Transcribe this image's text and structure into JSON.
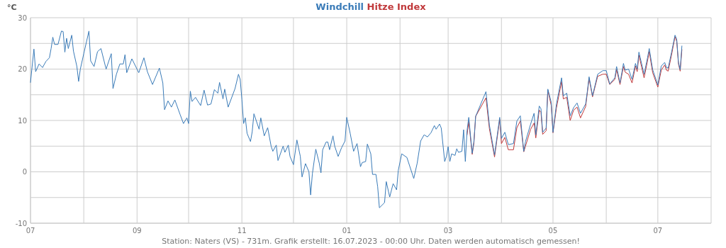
{
  "chart_data": {
    "type": "line",
    "ylabel": "°C",
    "legend": "top",
    "grid": true,
    "line_style": "solid",
    "marker": "none",
    "xlim": [
      "2022-07-01",
      "2023-08-01"
    ],
    "xticks": [
      {
        "value": "2022-07-01",
        "label": "07"
      },
      {
        "value": "2022-08-01",
        "label": null
      },
      {
        "value": "2022-09-01",
        "label": "09"
      },
      {
        "value": "2022-10-01",
        "label": null
      },
      {
        "value": "2022-11-01",
        "label": "11"
      },
      {
        "value": "2022-12-01",
        "label": null
      },
      {
        "value": "2023-01-01",
        "label": "01"
      },
      {
        "value": "2023-02-01",
        "label": null
      },
      {
        "value": "2023-03-01",
        "label": "03"
      },
      {
        "value": "2023-04-01",
        "label": null
      },
      {
        "value": "2023-05-01",
        "label": "05"
      },
      {
        "value": "2023-06-01",
        "label": null
      },
      {
        "value": "2023-07-01",
        "label": "07"
      },
      {
        "value": "2023-08-01",
        "label": null
      }
    ],
    "ylim": [
      -10,
      30
    ],
    "yticks": [
      -10,
      {
        "value": -5,
        "label": null
      },
      0,
      {
        "value": 5,
        "label": null
      },
      10,
      {
        "value": 15,
        "label": null
      },
      20,
      {
        "value": 25,
        "label": null
      },
      30
    ],
    "annotations": [
      "Station: Naters (VS) - 731m. Grafik erstellt: 16.07.2023 - 00:00 Uhr. Daten werden automatisch gemessen!"
    ],
    "series": [
      {
        "name": "Windchill",
        "color": "#3a7bb8",
        "x": [
          "2022-07-01",
          "2022-07-03",
          "2022-07-04",
          "2022-07-06",
          "2022-07-08",
          "2022-07-10",
          "2022-07-12",
          "2022-07-13",
          "2022-07-14",
          "2022-07-15",
          "2022-07-17",
          "2022-07-19",
          "2022-07-20",
          "2022-07-21",
          "2022-07-22",
          "2022-07-23",
          "2022-07-25",
          "2022-07-26",
          "2022-07-28",
          "2022-07-29",
          "2022-07-30",
          "2022-08-01",
          "2022-08-04",
          "2022-08-05",
          "2022-08-07",
          "2022-08-09",
          "2022-08-11",
          "2022-08-14",
          "2022-08-17",
          "2022-08-18",
          "2022-08-20",
          "2022-08-22",
          "2022-08-24",
          "2022-08-25",
          "2022-08-26",
          "2022-08-29",
          "2022-09-02",
          "2022-09-05",
          "2022-09-07",
          "2022-09-10",
          "2022-09-14",
          "2022-09-16",
          "2022-09-17",
          "2022-09-19",
          "2022-09-21",
          "2022-09-23",
          "2022-09-26",
          "2022-09-28",
          "2022-09-30",
          "2022-10-01",
          "2022-10-02",
          "2022-10-03",
          "2022-10-05",
          "2022-10-08",
          "2022-10-10",
          "2022-10-12",
          "2022-10-14",
          "2022-10-16",
          "2022-10-18",
          "2022-10-19",
          "2022-10-21",
          "2022-10-22",
          "2022-10-24",
          "2022-10-28",
          "2022-10-30",
          "2022-10-31",
          "2022-11-01",
          "2022-11-02",
          "2022-11-03",
          "2022-11-04",
          "2022-11-06",
          "2022-11-07",
          "2022-11-08",
          "2022-11-11",
          "2022-11-12",
          "2022-11-14",
          "2022-11-16",
          "2022-11-18",
          "2022-11-19",
          "2022-11-21",
          "2022-11-22",
          "2022-11-25",
          "2022-11-26",
          "2022-11-28",
          "2022-11-29",
          "2022-12-01",
          "2022-12-03",
          "2022-12-05",
          "2022-12-06",
          "2022-12-08",
          "2022-12-10",
          "2022-12-11",
          "2022-12-12",
          "2022-12-14",
          "2022-12-16",
          "2022-12-17",
          "2022-12-18",
          "2022-12-20",
          "2022-12-21",
          "2022-12-22",
          "2022-12-24",
          "2022-12-25",
          "2022-12-27",
          "2022-12-29",
          "2022-12-31",
          "2023-01-01",
          "2023-01-03",
          "2023-01-05",
          "2023-01-07",
          "2023-01-09",
          "2023-01-10",
          "2023-01-12",
          "2023-01-13",
          "2023-01-15",
          "2023-01-16",
          "2023-01-18",
          "2023-01-19",
          "2023-01-20",
          "2023-01-23",
          "2023-01-24",
          "2023-01-26",
          "2023-01-28",
          "2023-01-30",
          "2023-01-31",
          "2023-02-02",
          "2023-02-05",
          "2023-02-09",
          "2023-02-11",
          "2023-02-13",
          "2023-02-15",
          "2023-02-17",
          "2023-02-19",
          "2023-02-21",
          "2023-02-22",
          "2023-02-24",
          "2023-02-25",
          "2023-02-27",
          "2023-02-28",
          "2023-03-01",
          "2023-03-02",
          "2023-03-03",
          "2023-03-05",
          "2023-03-06",
          "2023-03-07",
          "2023-03-09",
          "2023-03-10",
          "2023-03-11",
          "2023-03-12",
          "2023-03-13",
          "2023-03-15",
          "2023-03-16",
          "2023-03-17",
          "2023-03-23",
          "2023-03-25",
          "2023-03-28",
          "2023-03-31",
          "2023-04-01",
          "2023-04-03",
          "2023-04-05",
          "2023-04-08",
          "2023-04-10",
          "2023-04-12",
          "2023-04-14",
          "2023-04-15",
          "2023-04-18",
          "2023-04-20",
          "2023-04-21",
          "2023-04-23",
          "2023-04-24",
          "2023-04-25",
          "2023-04-27",
          "2023-04-28",
          "2023-04-30",
          "2023-05-01",
          "2023-05-03",
          "2023-05-06",
          "2023-05-07",
          "2023-05-09",
          "2023-05-11",
          "2023-05-13",
          "2023-05-15",
          "2023-05-17",
          "2023-05-20",
          "2023-05-21",
          "2023-05-22",
          "2023-05-24",
          "2023-05-27",
          "2023-05-30",
          "2023-06-01",
          "2023-06-03",
          "2023-06-06",
          "2023-06-07",
          "2023-06-09",
          "2023-06-11",
          "2023-06-12",
          "2023-06-14",
          "2023-06-16",
          "2023-06-18",
          "2023-06-19",
          "2023-06-20",
          "2023-06-23",
          "2023-06-25",
          "2023-06-26",
          "2023-06-28",
          "2023-07-01",
          "2023-07-03",
          "2023-07-05",
          "2023-07-06",
          "2023-07-07",
          "2023-07-09",
          "2023-07-11",
          "2023-07-12",
          "2023-07-13",
          "2023-07-14",
          "2023-07-15"
        ],
        "values": [
          17.4,
          23.9,
          19.5,
          21,
          20.3,
          21.5,
          22.2,
          24,
          26.2,
          24.8,
          24.8,
          27.4,
          27.3,
          23.3,
          26,
          24,
          26.6,
          23.5,
          20.5,
          17.6,
          20,
          23,
          27.4,
          21.6,
          20.5,
          23.4,
          24,
          20,
          23,
          16.2,
          19,
          21,
          21,
          22.8,
          19.3,
          22,
          19.3,
          22.2,
          19.5,
          17,
          20.2,
          17.3,
          12.1,
          13.8,
          12.6,
          14,
          11.2,
          9.4,
          10.5,
          9.4,
          15.7,
          13.7,
          14.5,
          12.9,
          15.9,
          13,
          13.2,
          16,
          15.3,
          17.4,
          14.2,
          16.1,
          12.6,
          16.2,
          19,
          18,
          14.1,
          9.4,
          10.5,
          7.5,
          5.9,
          7.8,
          11.3,
          8.3,
          10.5,
          7,
          8.6,
          5,
          4,
          5.2,
          2.2,
          5,
          3.8,
          5.2,
          3,
          1.4,
          6.2,
          3,
          -1,
          1.6,
          0,
          -4.5,
          -0.4,
          4.4,
          1.7,
          -0.2,
          4.3,
          5.8,
          5.8,
          4.3,
          7,
          5,
          3,
          4.7,
          6,
          10.6,
          7.5,
          4,
          5.5,
          1,
          1.8,
          2,
          5.4,
          3.5,
          -0.5,
          -0.5,
          -2.9,
          -7,
          -6,
          -1.9,
          -4.9,
          -2.3,
          -3.5,
          0.3,
          3.5,
          2.8,
          -1.3,
          1.7,
          6,
          7.2,
          6.8,
          7.6,
          9,
          8.3,
          9.3,
          8.5,
          2,
          3,
          4.9,
          2,
          3.5,
          3.2,
          4.5,
          3.8,
          4,
          8.2,
          2,
          8,
          10.6,
          3.6,
          6,
          10.8,
          15.6,
          9.1,
          3.3,
          10.6,
          6.5,
          7.7,
          5.3,
          5.5,
          9.9,
          10.9,
          4,
          5.9,
          9.3,
          11.4,
          7.2,
          12.8,
          12.3,
          7.7,
          8.5,
          16.1,
          13.5,
          7.7,
          13.2,
          18.3,
          14.8,
          15.3,
          10.9,
          12.5,
          13.4,
          11.4,
          13.2,
          15.7,
          18.5,
          14.8,
          19,
          19.7,
          19.7,
          17.1,
          18.3,
          20.5,
          17.3,
          21.1,
          19.8,
          20,
          18,
          21.1,
          20,
          23.3,
          19,
          22.2,
          24,
          19.9,
          16.9,
          20.6,
          21.3,
          20.3,
          20.2,
          23.3,
          26.6,
          25.8,
          21.3,
          19.9,
          24.5
        ]
      },
      {
        "name": "Hitze Index",
        "color": "#c0393b",
        "x": [
          "2023-03-12",
          "2023-03-13",
          "2023-03-15",
          "2023-03-16",
          "2023-03-17",
          "2023-03-23",
          "2023-03-25",
          "2023-03-28",
          "2023-03-31",
          "2023-04-01",
          "2023-04-03",
          "2023-04-05",
          "2023-04-08",
          "2023-04-10",
          "2023-04-12",
          "2023-04-14",
          "2023-04-15",
          "2023-04-18",
          "2023-04-20",
          "2023-04-21",
          "2023-04-23",
          "2023-04-24",
          "2023-04-25",
          "2023-04-27",
          "2023-04-28",
          "2023-04-30",
          "2023-05-01",
          "2023-05-03",
          "2023-05-06",
          "2023-05-07",
          "2023-05-09",
          "2023-05-11",
          "2023-05-13",
          "2023-05-15",
          "2023-05-17",
          "2023-05-20",
          "2023-05-21",
          "2023-05-22",
          "2023-05-24",
          "2023-05-27",
          "2023-05-30",
          "2023-06-01",
          "2023-06-03",
          "2023-06-06",
          "2023-06-07",
          "2023-06-09",
          "2023-06-11",
          "2023-06-12",
          "2023-06-14",
          "2023-06-16",
          "2023-06-18",
          "2023-06-19",
          "2023-06-20",
          "2023-06-23",
          "2023-06-25",
          "2023-06-26",
          "2023-06-28",
          "2023-07-01",
          "2023-07-03",
          "2023-07-05",
          "2023-07-06",
          "2023-07-07",
          "2023-07-09",
          "2023-07-11",
          "2023-07-12",
          "2023-07-13",
          "2023-07-14",
          "2023-07-15"
        ],
        "values": [
          7.2,
          9.8,
          3.4,
          5.6,
          10.8,
          14.4,
          8.4,
          2.9,
          10.2,
          5.5,
          6.7,
          4.3,
          4.3,
          8.6,
          9.9,
          3.9,
          5,
          8.3,
          9.5,
          6.6,
          12,
          11.6,
          7.3,
          8,
          15.9,
          12.9,
          7.6,
          12.4,
          17.6,
          14.2,
          14.5,
          10,
          12,
          12.6,
          10.5,
          12.7,
          15.4,
          18.2,
          14.6,
          18.6,
          19,
          19,
          17,
          18,
          19.9,
          17,
          20.5,
          19.4,
          19,
          17.3,
          20.6,
          19.5,
          22.7,
          18.3,
          21.6,
          23.4,
          19.3,
          16.5,
          19.8,
          20.8,
          19.8,
          19.6,
          22.8,
          26.3,
          25.4,
          21,
          19.6,
          23.8
        ]
      }
    ]
  }
}
